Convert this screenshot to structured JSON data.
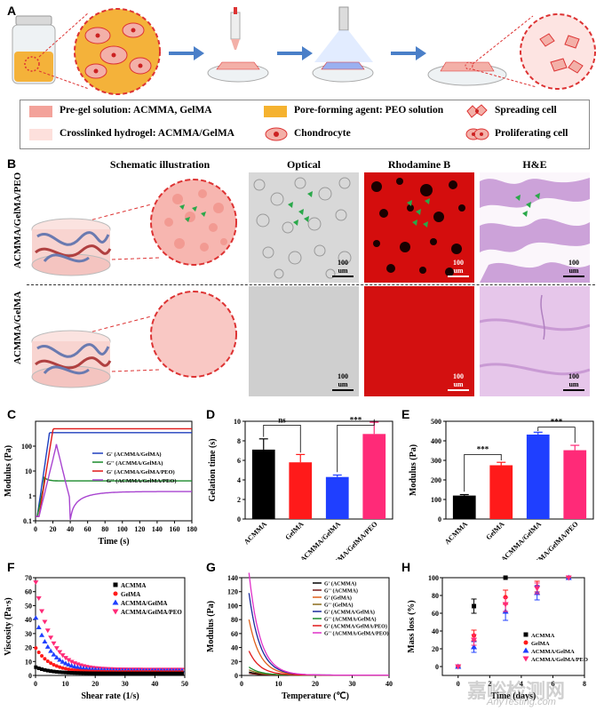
{
  "panelA": {
    "letter": "A",
    "legend": {
      "pregel": "Pre-gel solution: ACMMA, GelMA",
      "pore": "Pore-forming agent: PEO solution",
      "spreading": "Spreading cell",
      "crosslinked": "Crosslinked hydrogel: ACMMA/GelMA",
      "chondrocyte": "Chondrocyte",
      "proliferating": "Proliferating cell"
    }
  },
  "panelB": {
    "letter": "B",
    "col_schematic": "Schematic illustration",
    "col_optical": "Optical",
    "col_rhodamine": "Rhodamine B",
    "col_he": "H&E",
    "row1": "ACMMA/GelMA/PEO",
    "row2": "ACMMA/GelMA",
    "scale": "100 um"
  },
  "panelC": {
    "letter": "C",
    "chart_data": {
      "type": "line",
      "xlabel": "Time (s)",
      "ylabel": "Modulus (Pa)",
      "xlim": [
        0,
        180
      ],
      "ylim_log": [
        0.1,
        1000
      ],
      "xticks": [
        "0",
        "20",
        "40",
        "60",
        "80",
        "100",
        "120",
        "140",
        "160",
        "180"
      ],
      "yticks": [
        "0.1",
        "1",
        "10",
        "100"
      ],
      "series": [
        {
          "name": "G' (ACMMA/GelMA)",
          "color": "#1f3fbf"
        },
        {
          "name": "G'' (ACMMA/GelMA)",
          "color": "#1a8a2a"
        },
        {
          "name": "G' (ACMMA/GelMA/PEO)",
          "color": "#e01818"
        },
        {
          "name": "G'' (ACMMA/GelMA/PEO)",
          "color": "#a844d0"
        }
      ]
    }
  },
  "panelD": {
    "letter": "D",
    "chart_data": {
      "type": "bar",
      "categories": [
        "ACMMA",
        "GelMA",
        "ACMMA/GelMA",
        "ACMMA/GelMA/PEO"
      ],
      "values": [
        7.1,
        5.8,
        4.3,
        8.7
      ],
      "errors": [
        1.1,
        0.8,
        0.2,
        1.2
      ],
      "colors": [
        "#000000",
        "#ff1a1a",
        "#1f3fff",
        "#ff2a78"
      ],
      "ylabel": "Gelation time (s)",
      "ylim": [
        0,
        10
      ],
      "yticks": [
        "0",
        "2",
        "4",
        "6",
        "8",
        "10"
      ],
      "sig": [
        {
          "label": "ns"
        },
        {
          "label": "***"
        }
      ]
    }
  },
  "panelE": {
    "letter": "E",
    "chart_data": {
      "type": "bar",
      "categories": [
        "ACMMA",
        "GelMA",
        "ACMMA/GelMA",
        "ACMMA/GelMA/PEO"
      ],
      "values": [
        120,
        275,
        432,
        352
      ],
      "errors": [
        5,
        15,
        12,
        25
      ],
      "colors": [
        "#000000",
        "#ff1a1a",
        "#1f3fff",
        "#ff2a78"
      ],
      "ylabel": "Modulus (Pa)",
      "ylim": [
        0,
        500
      ],
      "yticks": [
        "0",
        "100",
        "200",
        "300",
        "400",
        "500"
      ],
      "sig": [
        {
          "label": "***"
        },
        {
          "label": "***"
        }
      ]
    }
  },
  "panelF": {
    "letter": "F",
    "chart_data": {
      "type": "scatter",
      "xlabel": "Shear rate (1/s)",
      "ylabel": "Viscosity (Pa·s)",
      "xlim": [
        0,
        50
      ],
      "ylim": [
        0,
        70
      ],
      "xticks": [
        "0",
        "10",
        "20",
        "30",
        "40",
        "50"
      ],
      "yticks": [
        "0",
        "10",
        "20",
        "30",
        "40",
        "50",
        "60",
        "70"
      ],
      "series": [
        {
          "name": "ACMMA",
          "color": "#000000",
          "marker": "square",
          "a": 6,
          "c": 1.5
        },
        {
          "name": "GelMA",
          "color": "#ff1a1a",
          "marker": "circle",
          "a": 20,
          "c": 2.5
        },
        {
          "name": "ACMMA/GelMA",
          "color": "#1f3fff",
          "marker": "triangle",
          "a": 42,
          "c": 3.5
        },
        {
          "name": "ACMMA/GelMA/PEO",
          "color": "#ff2a78",
          "marker": "triangle-down",
          "a": 68,
          "c": 4.2
        }
      ]
    }
  },
  "panelG": {
    "letter": "G",
    "chart_data": {
      "type": "line",
      "xlabel": "Temperature (℃)",
      "ylabel": "Modulus (Pa)",
      "xlim": [
        0,
        40
      ],
      "ylim": [
        0,
        140
      ],
      "xticks": [
        "0",
        "10",
        "20",
        "30",
        "40"
      ],
      "yticks": [
        "0",
        "20",
        "40",
        "60",
        "80",
        "100",
        "120",
        "140"
      ],
      "series": [
        {
          "name": "G' (ACMMA)",
          "color": "#000000",
          "start": 5
        },
        {
          "name": "G'' (ACMMA)",
          "color": "#7a1a1a",
          "start": 3
        },
        {
          "name": "G' (GelMA)",
          "color": "#e0601a",
          "start": 80
        },
        {
          "name": "G'' (GelMA)",
          "color": "#8a6a1a",
          "start": 8
        },
        {
          "name": "G' (ACMMA/GelMA)",
          "color": "#1a2a9a",
          "start": 118
        },
        {
          "name": "G'' (ACMMA/GelMA)",
          "color": "#1a8a2a",
          "start": 12
        },
        {
          "name": "G' (ACMMA/GelMA/PEO)",
          "color": "#e01818",
          "start": 35
        },
        {
          "name": "G'' (ACMMA/GelMA/PEO)",
          "color": "#e030c8",
          "start": 147
        }
      ]
    }
  },
  "panelH": {
    "letter": "H",
    "chart_data": {
      "type": "scatter",
      "xlabel": "Time (days)",
      "ylabel": "Mass loss (%)",
      "xlim": [
        -1,
        8
      ],
      "ylim": [
        -10,
        100
      ],
      "xticks": [
        "0",
        "2",
        "4",
        "6",
        "8"
      ],
      "yticks": [
        "0",
        "20",
        "40",
        "60",
        "80",
        "100"
      ],
      "series": [
        {
          "name": "ACMMA",
          "color": "#000000",
          "marker": "square",
          "x": [
            0,
            1,
            3
          ],
          "y": [
            0,
            68,
            100
          ],
          "err": [
            0,
            8,
            0
          ]
        },
        {
          "name": "GelMA",
          "color": "#ff1a1a",
          "marker": "circle",
          "x": [
            0,
            1,
            3,
            5,
            7
          ],
          "y": [
            0,
            35,
            78,
            90,
            100
          ],
          "err": [
            0,
            6,
            8,
            6,
            0
          ]
        },
        {
          "name": "ACMMA/GelMA",
          "color": "#1f3fff",
          "marker": "triangle",
          "x": [
            0,
            1,
            3,
            5,
            7
          ],
          "y": [
            0,
            22,
            62,
            83,
            100
          ],
          "err": [
            0,
            6,
            10,
            8,
            0
          ]
        },
        {
          "name": "ACMMA/GelMA/PEO",
          "color": "#ff2a78",
          "marker": "triangle-down",
          "x": [
            0,
            1,
            3,
            5,
            7
          ],
          "y": [
            0,
            30,
            70,
            88,
            100
          ],
          "err": [
            0,
            6,
            8,
            6,
            0
          ]
        }
      ]
    },
    "watermark": "嘉峪检测网",
    "watermark_url": "AnyTesting.com"
  }
}
